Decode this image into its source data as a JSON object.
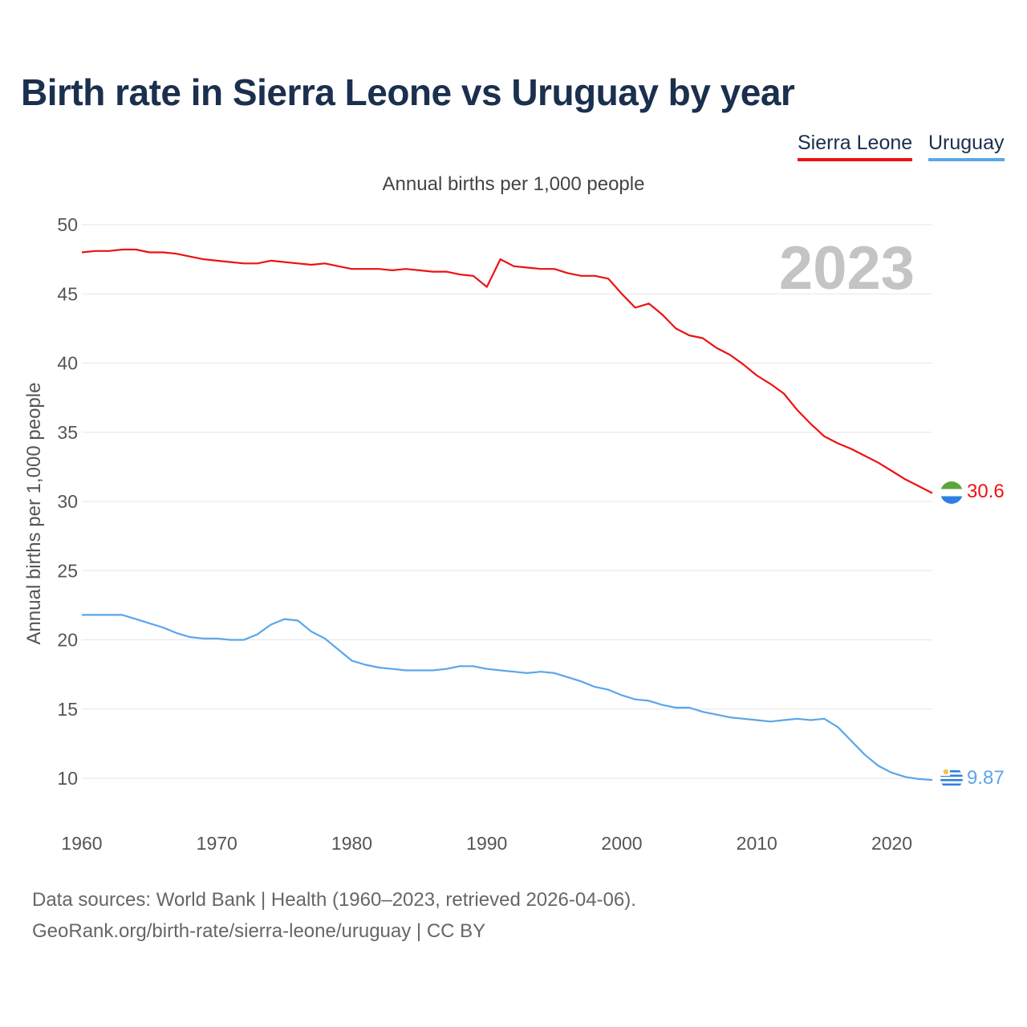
{
  "title": "Birth rate in Sierra Leone vs Uruguay by year",
  "legend": [
    {
      "name": "Sierra Leone",
      "color": "#ee1111"
    },
    {
      "name": "Uruguay",
      "color": "#5aa6ea"
    }
  ],
  "footer": {
    "source": "Data sources: World Bank | Health (1960–2023, retrieved 2026-04-06).",
    "credit": "GeoRank.org/birth-rate/sierra-leone/uruguay | CC BY"
  },
  "chart_data": {
    "type": "line",
    "title": "Birth rate in Sierra Leone vs Uruguay by year",
    "subtitle": "Annual births per 1,000 people",
    "ylabel": "Annual births per 1,000 people",
    "xlabel": "",
    "ylim": [
      7,
      50
    ],
    "xlim": [
      1960,
      2023
    ],
    "yticks": [
      10,
      15,
      20,
      25,
      30,
      35,
      40,
      45,
      50
    ],
    "xticks": [
      1960,
      1970,
      1980,
      1990,
      2000,
      2010,
      2020
    ],
    "grid": true,
    "year_watermark": "2023",
    "x": [
      1960,
      1961,
      1962,
      1963,
      1964,
      1965,
      1966,
      1967,
      1968,
      1969,
      1970,
      1971,
      1972,
      1973,
      1974,
      1975,
      1976,
      1977,
      1978,
      1979,
      1980,
      1981,
      1982,
      1983,
      1984,
      1985,
      1986,
      1987,
      1988,
      1989,
      1990,
      1991,
      1992,
      1993,
      1994,
      1995,
      1996,
      1997,
      1998,
      1999,
      2000,
      2001,
      2002,
      2003,
      2004,
      2005,
      2006,
      2007,
      2008,
      2009,
      2010,
      2011,
      2012,
      2013,
      2014,
      2015,
      2016,
      2017,
      2018,
      2019,
      2020,
      2021,
      2022,
      2023
    ],
    "series": [
      {
        "name": "Sierra Leone",
        "color": "#ee1111",
        "end_label": "30.6",
        "values": [
          48.0,
          48.1,
          48.1,
          48.2,
          48.2,
          48.0,
          48.0,
          47.9,
          47.7,
          47.5,
          47.4,
          47.3,
          47.2,
          47.2,
          47.4,
          47.3,
          47.2,
          47.1,
          47.2,
          47.0,
          46.8,
          46.8,
          46.8,
          46.7,
          46.8,
          46.7,
          46.6,
          46.6,
          46.4,
          46.3,
          45.5,
          47.5,
          47.0,
          46.9,
          46.8,
          46.8,
          46.5,
          46.3,
          46.3,
          46.1,
          45.0,
          44.0,
          44.3,
          43.5,
          42.5,
          42.0,
          41.8,
          41.1,
          40.6,
          39.9,
          39.1,
          38.5,
          37.8,
          36.6,
          35.6,
          34.7,
          34.2,
          33.8,
          33.3,
          32.8,
          32.2,
          31.6,
          31.1,
          30.6
        ]
      },
      {
        "name": "Uruguay",
        "color": "#5aa6ea",
        "end_label": "9.87",
        "values": [
          21.8,
          21.8,
          21.8,
          21.8,
          21.5,
          21.2,
          20.9,
          20.5,
          20.2,
          20.1,
          20.1,
          20.0,
          20.0,
          20.4,
          21.1,
          21.5,
          21.4,
          20.6,
          20.1,
          19.3,
          18.5,
          18.2,
          18.0,
          17.9,
          17.8,
          17.8,
          17.8,
          17.9,
          18.1,
          18.1,
          17.9,
          17.8,
          17.7,
          17.6,
          17.7,
          17.6,
          17.3,
          17.0,
          16.6,
          16.4,
          16.0,
          15.7,
          15.6,
          15.3,
          15.1,
          15.1,
          14.8,
          14.6,
          14.4,
          14.3,
          14.2,
          14.1,
          14.2,
          14.3,
          14.2,
          14.3,
          13.7,
          12.7,
          11.7,
          10.9,
          10.4,
          10.1,
          9.95,
          9.87
        ]
      }
    ]
  }
}
